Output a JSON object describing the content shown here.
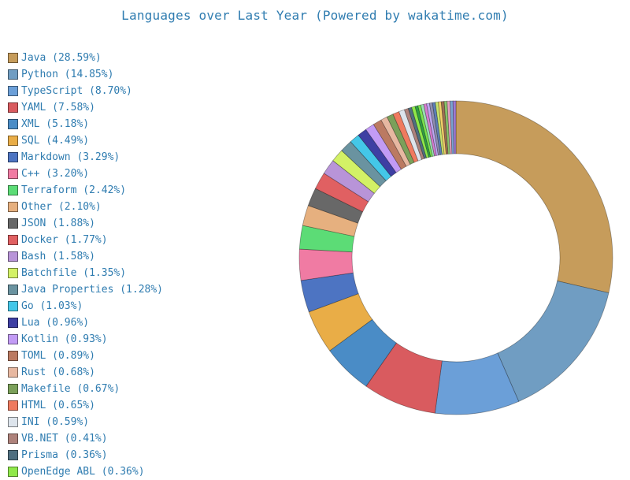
{
  "chart_data": {
    "type": "pie",
    "title": "Languages over Last Year (Powered by wakatime.com)",
    "legend_position": "left",
    "slices": [
      {
        "label": "Java (28.59%)",
        "name": "Java",
        "value": 28.59,
        "color": "#c69c5b"
      },
      {
        "label": "Python (14.85%)",
        "name": "Python",
        "value": 14.85,
        "color": "#709dc2"
      },
      {
        "label": "TypeScript (8.70%)",
        "name": "TypeScript",
        "value": 8.7,
        "color": "#6b9fd8"
      },
      {
        "label": "YAML (7.58%)",
        "name": "YAML",
        "value": 7.58,
        "color": "#d95b5f"
      },
      {
        "label": "XML (5.18%)",
        "name": "XML",
        "value": 5.18,
        "color": "#4a8cc6"
      },
      {
        "label": "SQL (4.49%)",
        "name": "SQL",
        "value": 4.49,
        "color": "#e9ad47"
      },
      {
        "label": "Markdown (3.29%)",
        "name": "Markdown",
        "value": 3.29,
        "color": "#4d74c2"
      },
      {
        "label": "C++ (3.20%)",
        "name": "C++",
        "value": 3.2,
        "color": "#f07ba3"
      },
      {
        "label": "Terraform (2.42%)",
        "name": "Terraform",
        "value": 2.42,
        "color": "#5cdc76"
      },
      {
        "label": "Other (2.10%)",
        "name": "Other",
        "value": 2.1,
        "color": "#e6b07f"
      },
      {
        "label": "JSON (1.88%)",
        "name": "JSON",
        "value": 1.88,
        "color": "#686868"
      },
      {
        "label": "Docker (1.77%)",
        "name": "Docker",
        "value": 1.77,
        "color": "#e06062"
      },
      {
        "label": "Bash (1.58%)",
        "name": "Bash",
        "value": 1.58,
        "color": "#b894d8"
      },
      {
        "label": "Batchfile (1.35%)",
        "name": "Batchfile",
        "value": 1.35,
        "color": "#d3f166"
      },
      {
        "label": "Java Properties (1.28%)",
        "name": "Java Properties",
        "value": 1.28,
        "color": "#6a93a0"
      },
      {
        "label": "Go (1.03%)",
        "name": "Go",
        "value": 1.03,
        "color": "#44c7e8"
      },
      {
        "label": "Lua (0.96%)",
        "name": "Lua",
        "value": 0.96,
        "color": "#3e3fa3"
      },
      {
        "label": "Kotlin (0.93%)",
        "name": "Kotlin",
        "value": 0.93,
        "color": "#c29bf5"
      },
      {
        "label": "TOML (0.89%)",
        "name": "TOML",
        "value": 0.89,
        "color": "#bb7a62"
      },
      {
        "label": "Rust (0.68%)",
        "name": "Rust",
        "value": 0.68,
        "color": "#e7b8a1"
      },
      {
        "label": "Makefile (0.67%)",
        "name": "Makefile",
        "value": 0.67,
        "color": "#7ba05a"
      },
      {
        "label": "HTML (0.65%)",
        "name": "HTML",
        "value": 0.65,
        "color": "#ef7a5f"
      },
      {
        "label": "INI (0.59%)",
        "name": "INI",
        "value": 0.59,
        "color": "#dde4ec"
      },
      {
        "label": "VB.NET (0.41%)",
        "name": "VB.NET",
        "value": 0.41,
        "color": "#ae827b"
      },
      {
        "label": "Prisma (0.36%)",
        "name": "Prisma",
        "value": 0.36,
        "color": "#4f6f80"
      },
      {
        "label": "OpenEdge ABL (0.36%)",
        "name": "OpenEdge ABL",
        "value": 0.36,
        "color": "#8fe84a"
      }
    ],
    "tail_colors": [
      "#2f9e44",
      "#7be34d",
      "#9be0b4",
      "#d67dd0",
      "#bba6f0",
      "#8f8fb0",
      "#5e7fb6",
      "#c8e46e",
      "#f2d06a",
      "#9e6e52",
      "#89c46a",
      "#e6a0c0",
      "#7aa3d0",
      "#a07ad0"
    ]
  }
}
